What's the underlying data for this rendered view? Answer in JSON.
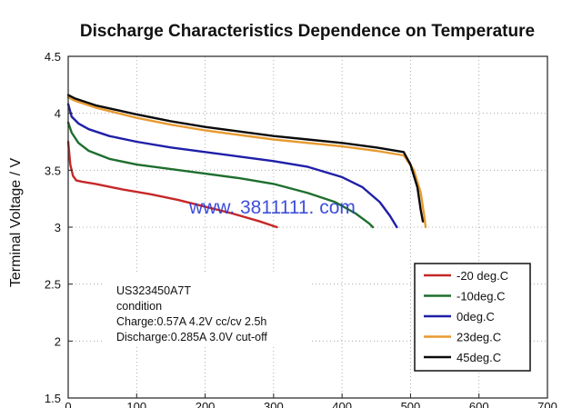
{
  "chart_data": {
    "type": "line",
    "title": "Discharge Characteristics Dependence on Temperature",
    "xlabel": "",
    "ylabel": "Terminal Voltage / V",
    "xlim": [
      0,
      700
    ],
    "ylim": [
      1.5,
      4.5
    ],
    "y_ticks": [
      "1.5",
      "2",
      "2.5",
      "3",
      "3.5",
      "4",
      "4.5"
    ],
    "x_ticks": [
      "0",
      "100",
      "200",
      "300",
      "400",
      "500",
      "600",
      "700"
    ],
    "grid": "dotted",
    "legend_position": "bottom-right",
    "series": [
      {
        "name": "-20 deg.C",
        "color": "#c62828",
        "x": [
          0,
          3,
          7,
          12,
          20,
          40,
          80,
          120,
          160,
          200,
          240,
          280,
          305
        ],
        "y": [
          3.75,
          3.55,
          3.45,
          3.41,
          3.4,
          3.38,
          3.33,
          3.29,
          3.24,
          3.18,
          3.12,
          3.05,
          3.0
        ]
      },
      {
        "name": "-10deg.C",
        "color": "#1e6e2e",
        "x": [
          0,
          5,
          15,
          30,
          60,
          100,
          150,
          200,
          250,
          300,
          350,
          390,
          420,
          440,
          445
        ],
        "y": [
          3.92,
          3.83,
          3.74,
          3.67,
          3.6,
          3.55,
          3.51,
          3.47,
          3.43,
          3.38,
          3.3,
          3.22,
          3.12,
          3.03,
          3.0
        ]
      },
      {
        "name": "0deg.C",
        "color": "#1f1fa8",
        "x": [
          0,
          5,
          15,
          30,
          60,
          100,
          150,
          200,
          250,
          300,
          350,
          400,
          430,
          455,
          470,
          480
        ],
        "y": [
          4.08,
          3.97,
          3.91,
          3.86,
          3.8,
          3.75,
          3.7,
          3.66,
          3.62,
          3.58,
          3.53,
          3.44,
          3.35,
          3.22,
          3.1,
          3.0
        ]
      },
      {
        "name": "23deg.C",
        "color": "#e89a30",
        "x": [
          0,
          10,
          40,
          100,
          150,
          200,
          250,
          300,
          350,
          400,
          450,
          490,
          505,
          515,
          520,
          522
        ],
        "y": [
          4.14,
          4.11,
          4.05,
          3.96,
          3.9,
          3.85,
          3.81,
          3.77,
          3.74,
          3.71,
          3.67,
          3.63,
          3.5,
          3.3,
          3.1,
          3.0
        ]
      },
      {
        "name": "45deg.C",
        "color": "#0a0a0a",
        "x": [
          0,
          10,
          40,
          100,
          150,
          200,
          250,
          300,
          350,
          400,
          450,
          490,
          500,
          510,
          515,
          518
        ],
        "y": [
          4.16,
          4.13,
          4.07,
          3.99,
          3.93,
          3.88,
          3.84,
          3.8,
          3.77,
          3.74,
          3.7,
          3.66,
          3.55,
          3.35,
          3.15,
          3.05
        ]
      }
    ]
  },
  "annotation": {
    "lines": [
      "US323450A7T",
      "condition",
      "Charge:0.57A  4.2V cc/cv 2.5h",
      "Discharge:0.285A  3.0V cut-off"
    ]
  },
  "watermark": "www. 3811111. com"
}
